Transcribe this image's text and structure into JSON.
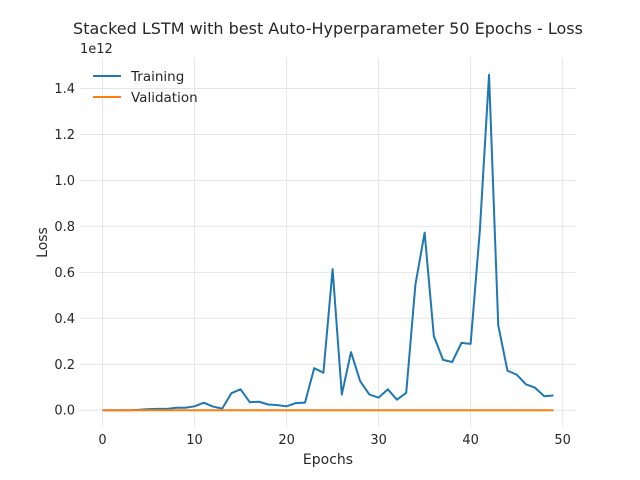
{
  "chart_data": {
    "type": "line",
    "title": "Stacked LSTM with best Auto-Hyperparameter 50 Epochs - Loss",
    "xlabel": "Epochs",
    "ylabel": "Loss",
    "y_offset_label": "1e12",
    "xlim": [
      -2.45,
      51.45
    ],
    "ylim": [
      -0.073,
      1.533
    ],
    "x_ticks": [
      0,
      10,
      20,
      30,
      40,
      50
    ],
    "y_ticks": [
      0.0,
      0.2,
      0.4,
      0.6,
      0.8,
      1.0,
      1.2,
      1.4
    ],
    "y_tick_labels": [
      "0.0",
      "0.2",
      "0.4",
      "0.6",
      "0.8",
      "1.0",
      "1.2",
      "1.4"
    ],
    "grid": true,
    "legend_position": "upper-left",
    "series": [
      {
        "name": "Training",
        "color": "#1f77b4",
        "x": [
          0,
          1,
          2,
          3,
          4,
          5,
          6,
          7,
          8,
          9,
          10,
          11,
          12,
          13,
          14,
          15,
          16,
          17,
          18,
          19,
          20,
          21,
          22,
          23,
          24,
          25,
          26,
          27,
          28,
          29,
          30,
          31,
          32,
          33,
          34,
          35,
          36,
          37,
          38,
          39,
          40,
          41,
          42,
          43,
          44,
          45,
          46,
          47,
          48,
          49
        ],
        "values": [
          0.0,
          0.0,
          0.0,
          0.0,
          0.002,
          0.005,
          0.006,
          0.006,
          0.011,
          0.011,
          0.017,
          0.033,
          0.016,
          0.007,
          0.074,
          0.091,
          0.035,
          0.037,
          0.025,
          0.022,
          0.017,
          0.031,
          0.033,
          0.183,
          0.163,
          0.614,
          0.068,
          0.253,
          0.126,
          0.068,
          0.055,
          0.091,
          0.046,
          0.076,
          0.547,
          0.773,
          0.323,
          0.219,
          0.21,
          0.293,
          0.289,
          0.782,
          1.46,
          0.37,
          0.172,
          0.155,
          0.113,
          0.098,
          0.061,
          0.064
        ]
      },
      {
        "name": "Validation",
        "color": "#ff7f0e",
        "x": [
          0,
          1,
          2,
          3,
          4,
          5,
          6,
          7,
          8,
          9,
          10,
          11,
          12,
          13,
          14,
          15,
          16,
          17,
          18,
          19,
          20,
          21,
          22,
          23,
          24,
          25,
          26,
          27,
          28,
          29,
          30,
          31,
          32,
          33,
          34,
          35,
          36,
          37,
          38,
          39,
          40,
          41,
          42,
          43,
          44,
          45,
          46,
          47,
          48,
          49
        ],
        "values": [
          0,
          0,
          0,
          0,
          0,
          0,
          0,
          0,
          0,
          0,
          0,
          0,
          0,
          0,
          0,
          0,
          0,
          0,
          0,
          0,
          0,
          0,
          0,
          0,
          0,
          0,
          0,
          0,
          0,
          0,
          0,
          0,
          0,
          0,
          0,
          0,
          0,
          0,
          0,
          0,
          0,
          0,
          0,
          0,
          0,
          0,
          0,
          0,
          0,
          0
        ]
      }
    ]
  }
}
